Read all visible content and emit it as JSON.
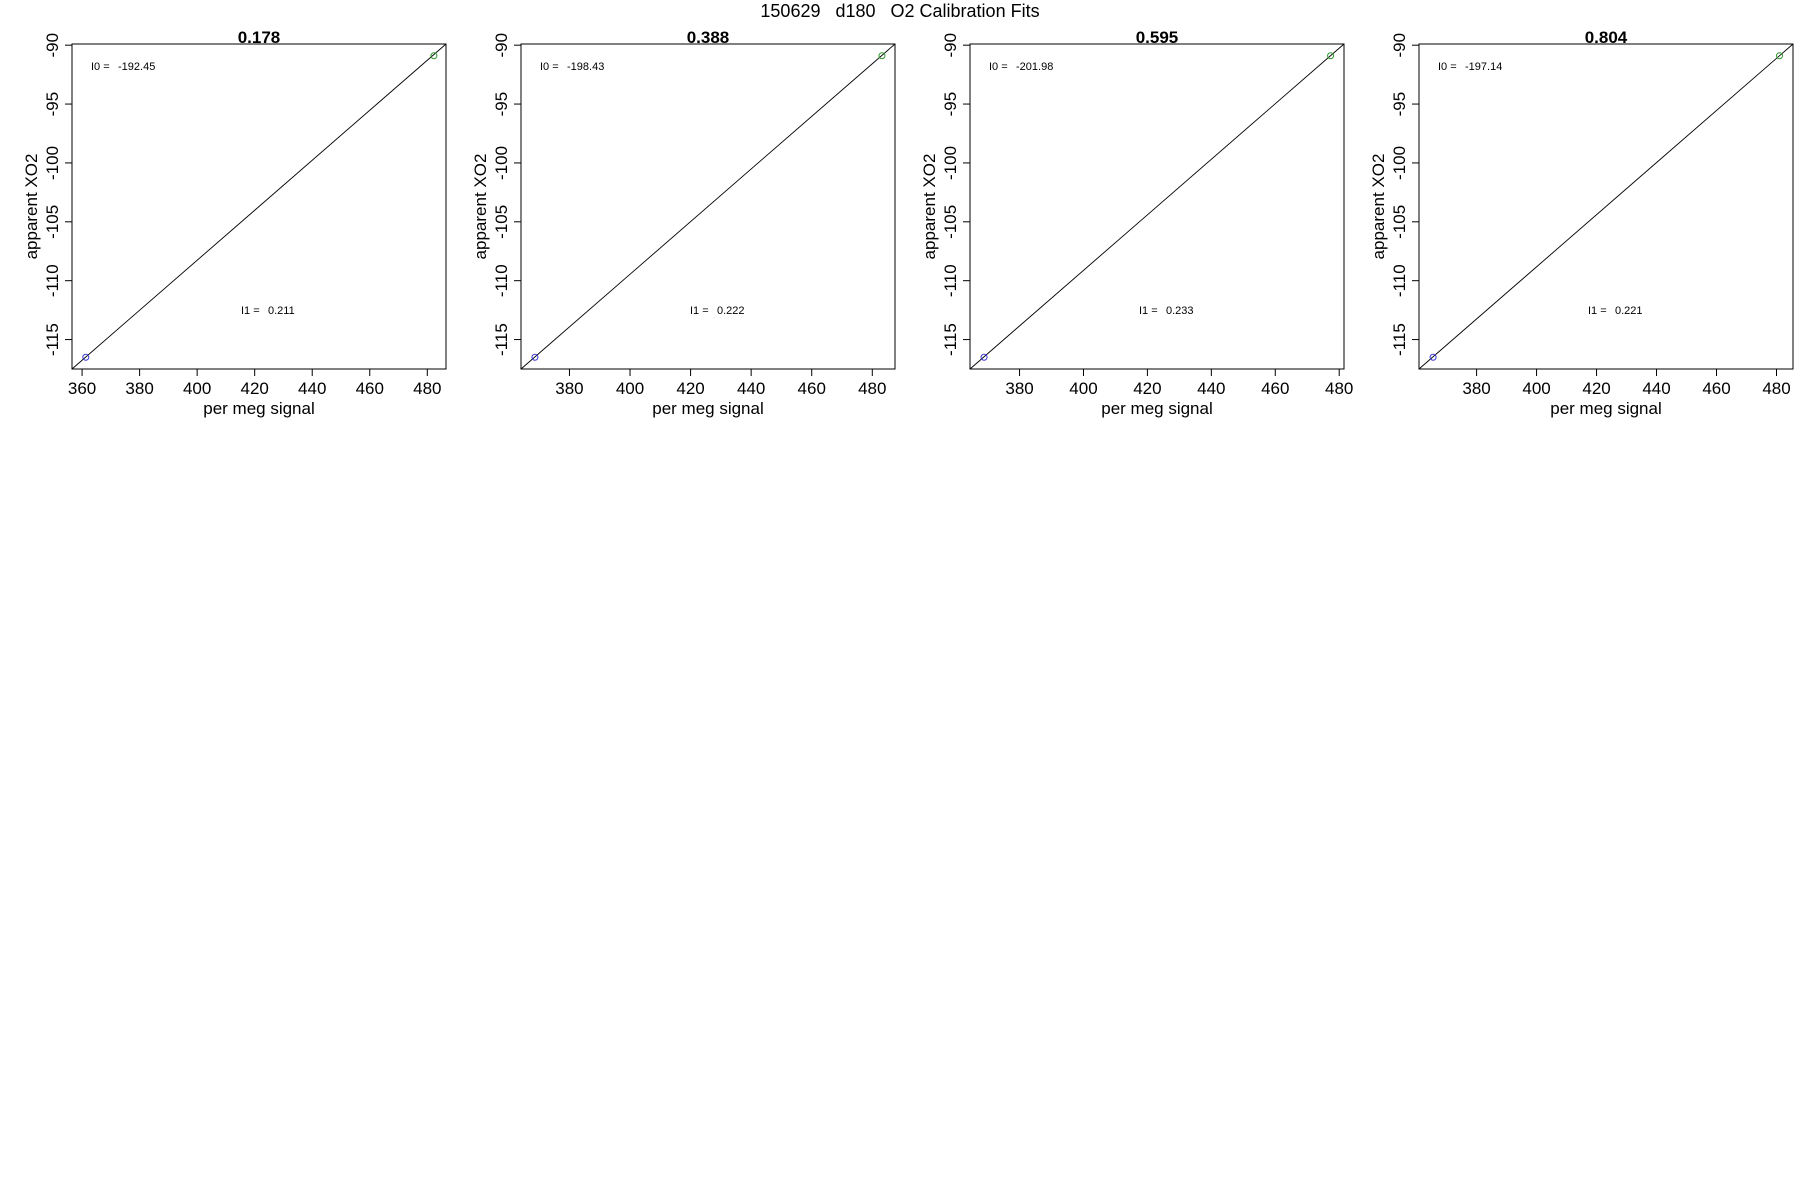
{
  "figure": {
    "title": "150629   d180   O2 Calibration Fits"
  },
  "chart_data": [
    {
      "type": "scatter",
      "title": "0.178",
      "xlabel": "per meg signal",
      "ylabel": "apparent XO2",
      "xlim": [
        356.5,
        486.5
      ],
      "ylim": [
        -117.5,
        -89.9
      ],
      "xticks": [
        360,
        380,
        400,
        420,
        440,
        460,
        480
      ],
      "yticks": [
        -115,
        -110,
        -105,
        -100,
        -95,
        -90
      ],
      "points": [
        {
          "x": 361.3,
          "y": -116.5,
          "color": "#3a3ad8"
        },
        {
          "x": 482.3,
          "y": -90.9,
          "color": "#2e9a2e"
        }
      ],
      "fit_line": {
        "x": [
          356.5,
          486.5
        ],
        "y": [
          -117.5,
          -89.9
        ]
      },
      "annotations": [
        {
          "label": "I0 =",
          "value": "-192.45"
        },
        {
          "label": "I1 =",
          "value": "0.211"
        }
      ],
      "grid": false
    },
    {
      "type": "scatter",
      "title": "0.388",
      "xlabel": "per meg signal",
      "ylabel": "apparent XO2",
      "xlim": [
        364,
        487.5
      ],
      "ylim": [
        -117.5,
        -89.9
      ],
      "xticks": [
        380,
        400,
        420,
        440,
        460,
        480
      ],
      "yticks": [
        -115,
        -110,
        -105,
        -100,
        -95,
        -90
      ],
      "points": [
        {
          "x": 368.6,
          "y": -116.5,
          "color": "#3a3ad8"
        },
        {
          "x": 483.2,
          "y": -90.9,
          "color": "#2e9a2e"
        }
      ],
      "fit_line": {
        "x": [
          364,
          487.5
        ],
        "y": [
          -117.5,
          -89.9
        ]
      },
      "annotations": [
        {
          "label": "I0 =",
          "value": "-198.43"
        },
        {
          "label": "I1 =",
          "value": "0.222"
        }
      ],
      "grid": false
    },
    {
      "type": "scatter",
      "title": "0.595",
      "xlabel": "per meg signal",
      "ylabel": "apparent XO2",
      "xlim": [
        364.5,
        481.5
      ],
      "ylim": [
        -117.5,
        -89.9
      ],
      "xticks": [
        380,
        400,
        420,
        440,
        460,
        480
      ],
      "yticks": [
        -115,
        -110,
        -105,
        -100,
        -95,
        -90
      ],
      "points": [
        {
          "x": 368.9,
          "y": -116.5,
          "color": "#3a3ad8"
        },
        {
          "x": 477.3,
          "y": -90.9,
          "color": "#2e9a2e"
        }
      ],
      "fit_line": {
        "x": [
          364.5,
          481.5
        ],
        "y": [
          -117.5,
          -89.9
        ]
      },
      "annotations": [
        {
          "label": "I0 =",
          "value": "-201.98"
        },
        {
          "label": "I1 =",
          "value": "0.233"
        }
      ],
      "grid": false
    },
    {
      "type": "scatter",
      "title": "0.804",
      "xlabel": "per meg signal",
      "ylabel": "apparent XO2",
      "xlim": [
        360.8,
        485.5
      ],
      "ylim": [
        -117.5,
        -89.9
      ],
      "xticks": [
        380,
        400,
        420,
        440,
        460,
        480
      ],
      "yticks": [
        -115,
        -110,
        -105,
        -100,
        -95,
        -90
      ],
      "points": [
        {
          "x": 365.5,
          "y": -116.5,
          "color": "#3a3ad8"
        },
        {
          "x": 481,
          "y": -90.9,
          "color": "#2e9a2e"
        }
      ],
      "fit_line": {
        "x": [
          360.8,
          485.5
        ],
        "y": [
          -117.5,
          -89.9
        ]
      },
      "annotations": [
        {
          "label": "I0 =",
          "value": "-197.14"
        },
        {
          "label": "I1 =",
          "value": "0.221"
        }
      ],
      "grid": false
    }
  ]
}
